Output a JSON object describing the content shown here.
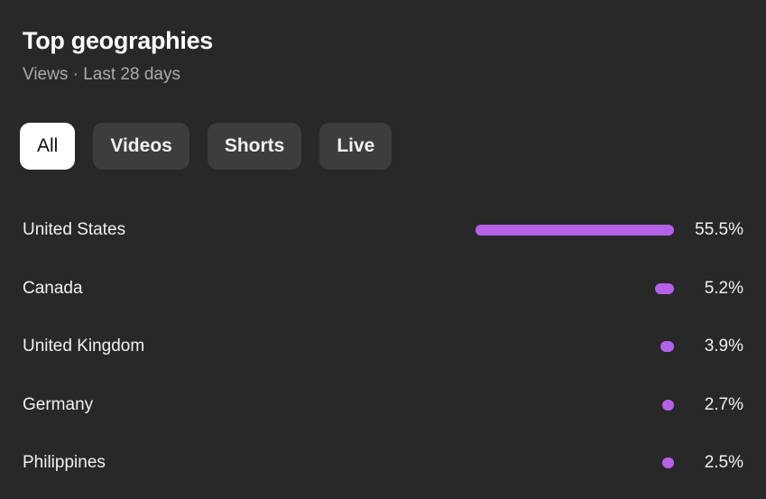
{
  "header": {
    "title": "Top geographies",
    "subtitle": "Views · Last 28 days"
  },
  "filters": [
    {
      "label": "All",
      "active": true
    },
    {
      "label": "Videos",
      "active": false
    },
    {
      "label": "Shorts",
      "active": false
    },
    {
      "label": "Live",
      "active": false
    }
  ],
  "accent_color": "#b660e8",
  "rows": [
    {
      "country": "United States",
      "percent": 55.5,
      "label": "55.5%"
    },
    {
      "country": "Canada",
      "percent": 5.2,
      "label": "5.2%"
    },
    {
      "country": "United Kingdom",
      "percent": 3.9,
      "label": "3.9%"
    },
    {
      "country": "Germany",
      "percent": 2.7,
      "label": "2.7%"
    },
    {
      "country": "Philippines",
      "percent": 2.5,
      "label": "2.5%"
    }
  ]
}
